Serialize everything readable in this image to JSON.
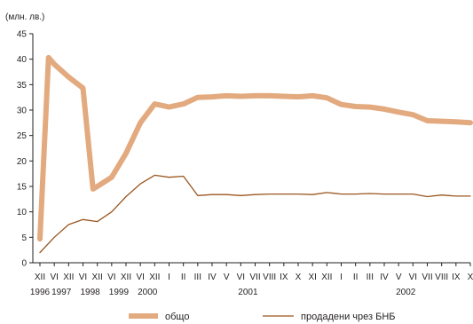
{
  "chart_data": {
    "type": "line",
    "unit_label": "(млн. лв.)",
    "ylim": [
      0,
      45
    ],
    "yticks": [
      0,
      5,
      10,
      15,
      20,
      25,
      30,
      35,
      40,
      45
    ],
    "grid": false,
    "legend_position": "bottom",
    "month_labels": [
      "XII",
      "VI",
      "XII",
      "VI",
      "XII",
      "VI",
      "XII",
      "VI",
      "XII",
      "I",
      "II",
      "III",
      "IV",
      "V",
      "VI",
      "VII",
      "VIII",
      "IX",
      "X",
      "XI",
      "XII",
      "I",
      "II",
      "III",
      "IV",
      "V",
      "VI",
      "VII",
      "VIII",
      "IX",
      "X"
    ],
    "year_labels": [
      {
        "label": "1996",
        "at": 0
      },
      {
        "label": "1997",
        "at": 1.5
      },
      {
        "label": "1998",
        "at": 3.5
      },
      {
        "label": "1999",
        "at": 5.5
      },
      {
        "label": "2000",
        "at": 7.5
      },
      {
        "label": "2001",
        "at": 14.5
      },
      {
        "label": "2002",
        "at": 25.5
      }
    ],
    "series": [
      {
        "name": "общо",
        "color": "#e2aa7e",
        "values": [
          {
            "x": 0,
            "y": 4.7
          },
          {
            "x": 0.6,
            "y": 40.3
          },
          {
            "x": 1.0,
            "y": 39.0
          },
          {
            "x": 2.0,
            "y": 36.5
          },
          {
            "x": 3.0,
            "y": 34.3
          },
          {
            "x": 3.7,
            "y": 14.5
          },
          {
            "x": 4.0,
            "y": 15.0
          },
          {
            "x": 5.0,
            "y": 16.8
          },
          {
            "x": 6.0,
            "y": 21.5
          },
          {
            "x": 7.0,
            "y": 27.5
          },
          {
            "x": 8.0,
            "y": 31.2
          },
          {
            "x": 9.0,
            "y": 30.6
          },
          {
            "x": 10.0,
            "y": 31.2
          },
          {
            "x": 11.0,
            "y": 32.5
          },
          {
            "x": 12.0,
            "y": 32.6
          },
          {
            "x": 13.0,
            "y": 32.8
          },
          {
            "x": 14.0,
            "y": 32.7
          },
          {
            "x": 15.0,
            "y": 32.8
          },
          {
            "x": 16.0,
            "y": 32.8
          },
          {
            "x": 17.0,
            "y": 32.7
          },
          {
            "x": 18.0,
            "y": 32.6
          },
          {
            "x": 19.0,
            "y": 32.8
          },
          {
            "x": 20.0,
            "y": 32.4
          },
          {
            "x": 21.0,
            "y": 31.1
          },
          {
            "x": 22.0,
            "y": 30.7
          },
          {
            "x": 23.0,
            "y": 30.6
          },
          {
            "x": 24.0,
            "y": 30.2
          },
          {
            "x": 25.0,
            "y": 29.6
          },
          {
            "x": 26.0,
            "y": 29.1
          },
          {
            "x": 27.0,
            "y": 27.9
          },
          {
            "x": 28.0,
            "y": 27.8
          },
          {
            "x": 29.0,
            "y": 27.7
          },
          {
            "x": 30.0,
            "y": 27.5
          }
        ]
      },
      {
        "name": "продадени чрез БНБ",
        "color": "#9b561f",
        "values": [
          {
            "x": 0,
            "y": 2.0
          },
          {
            "x": 1.0,
            "y": 5.0
          },
          {
            "x": 2.0,
            "y": 7.5
          },
          {
            "x": 3.0,
            "y": 8.5
          },
          {
            "x": 4.0,
            "y": 8.1
          },
          {
            "x": 5.0,
            "y": 10.0
          },
          {
            "x": 6.0,
            "y": 13.0
          },
          {
            "x": 7.0,
            "y": 15.5
          },
          {
            "x": 8.0,
            "y": 17.2
          },
          {
            "x": 9.0,
            "y": 16.8
          },
          {
            "x": 10.0,
            "y": 17.0
          },
          {
            "x": 11.0,
            "y": 13.2
          },
          {
            "x": 12.0,
            "y": 13.4
          },
          {
            "x": 13.0,
            "y": 13.4
          },
          {
            "x": 14.0,
            "y": 13.2
          },
          {
            "x": 15.0,
            "y": 13.4
          },
          {
            "x": 16.0,
            "y": 13.5
          },
          {
            "x": 17.0,
            "y": 13.5
          },
          {
            "x": 18.0,
            "y": 13.5
          },
          {
            "x": 19.0,
            "y": 13.4
          },
          {
            "x": 20.0,
            "y": 13.8
          },
          {
            "x": 21.0,
            "y": 13.5
          },
          {
            "x": 22.0,
            "y": 13.5
          },
          {
            "x": 23.0,
            "y": 13.6
          },
          {
            "x": 24.0,
            "y": 13.5
          },
          {
            "x": 25.0,
            "y": 13.5
          },
          {
            "x": 26.0,
            "y": 13.5
          },
          {
            "x": 27.0,
            "y": 13.0
          },
          {
            "x": 28.0,
            "y": 13.3
          },
          {
            "x": 29.0,
            "y": 13.1
          },
          {
            "x": 30.0,
            "y": 13.1
          }
        ]
      }
    ]
  }
}
